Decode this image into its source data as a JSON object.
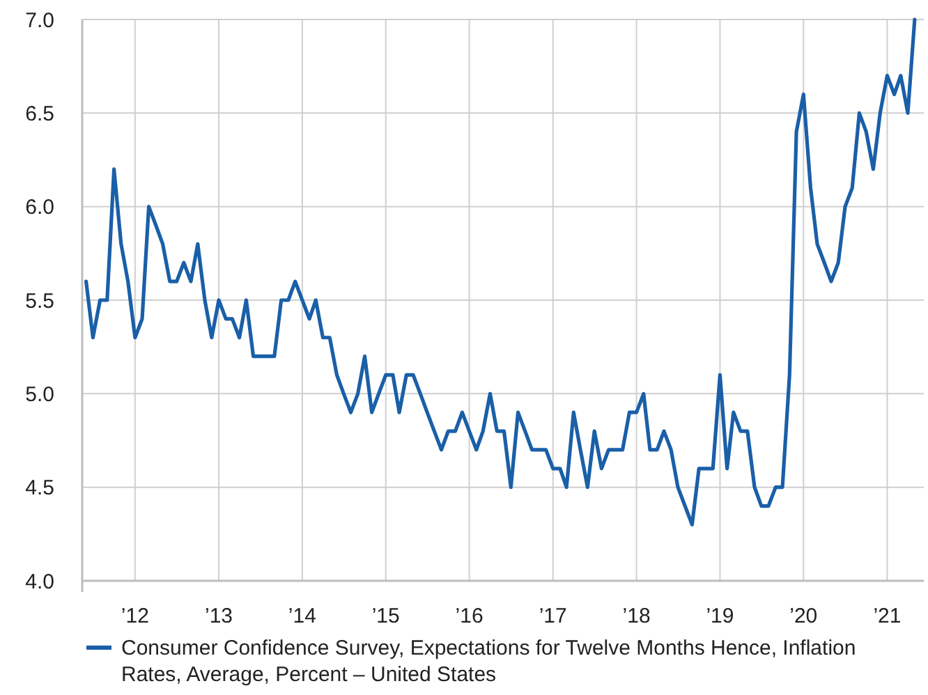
{
  "chart_data": {
    "type": "line",
    "legend": "bottom",
    "grid": true,
    "xlim": [
      "2011-05-15",
      "2021-06-10"
    ],
    "xticks": [
      {
        "value": "2012",
        "label": "’12"
      },
      {
        "value": "2013",
        "label": "’13"
      },
      {
        "value": "2014",
        "label": "’14"
      },
      {
        "value": "2015",
        "label": "’15"
      },
      {
        "value": "2016",
        "label": "’16"
      },
      {
        "value": "2017",
        "label": "’17"
      },
      {
        "value": "2018",
        "label": "’18"
      },
      {
        "value": "2019",
        "label": "’19"
      },
      {
        "value": "2020",
        "label": "’20"
      },
      {
        "value": "2021",
        "label": "’21"
      }
    ],
    "ylim": [
      4,
      7
    ],
    "yticks": [
      {
        "value": 4,
        "label": "4.0"
      },
      {
        "value": 4.5,
        "label": "4.5"
      },
      {
        "value": 5,
        "label": "5.0"
      },
      {
        "value": 5.5,
        "label": "5.5"
      },
      {
        "value": 6,
        "label": "6.0"
      },
      {
        "value": 6.5,
        "label": "6.5"
      },
      {
        "value": 7,
        "label": "7.0"
      }
    ],
    "x": [
      "2011-06",
      "2011-07",
      "2011-08",
      "2011-09",
      "2011-10",
      "2011-11",
      "2011-12",
      "2012-01",
      "2012-02",
      "2012-03",
      "2012-04",
      "2012-05",
      "2012-06",
      "2012-07",
      "2012-08",
      "2012-09",
      "2012-10",
      "2012-11",
      "2012-12",
      "2013-01",
      "2013-02",
      "2013-03",
      "2013-04",
      "2013-05",
      "2013-06",
      "2013-07",
      "2013-08",
      "2013-09",
      "2013-10",
      "2013-11",
      "2013-12",
      "2014-01",
      "2014-02",
      "2014-03",
      "2014-04",
      "2014-05",
      "2014-06",
      "2014-07",
      "2014-08",
      "2014-09",
      "2014-10",
      "2014-11",
      "2014-12",
      "2015-01",
      "2015-02",
      "2015-03",
      "2015-04",
      "2015-05",
      "2015-06",
      "2015-07",
      "2015-08",
      "2015-09",
      "2015-10",
      "2015-11",
      "2015-12",
      "2016-01",
      "2016-02",
      "2016-03",
      "2016-04",
      "2016-05",
      "2016-06",
      "2016-07",
      "2016-08",
      "2016-09",
      "2016-10",
      "2016-11",
      "2016-12",
      "2017-01",
      "2017-02",
      "2017-03",
      "2017-04",
      "2017-05",
      "2017-06",
      "2017-07",
      "2017-08",
      "2017-09",
      "2017-10",
      "2017-11",
      "2017-12",
      "2018-01",
      "2018-02",
      "2018-03",
      "2018-04",
      "2018-05",
      "2018-06",
      "2018-07",
      "2018-08",
      "2018-09",
      "2018-10",
      "2018-11",
      "2018-12",
      "2019-01",
      "2019-02",
      "2019-03",
      "2019-04",
      "2019-05",
      "2019-06",
      "2019-07",
      "2019-08",
      "2019-09",
      "2019-10",
      "2019-11",
      "2019-12",
      "2020-01",
      "2020-02",
      "2020-03",
      "2020-04",
      "2020-05",
      "2020-06",
      "2020-07",
      "2020-08",
      "2020-09",
      "2020-10",
      "2020-11",
      "2020-12",
      "2021-01",
      "2021-02",
      "2021-03",
      "2021-04",
      "2021-05"
    ],
    "series": [
      {
        "name": "Consumer Confidence Survey, Expectations for Twelve Months Hence, Inflation Rates, Average, Percent – United States",
        "color": "#1a5fa8",
        "values": [
          5.6,
          5.3,
          5.5,
          5.5,
          6.2,
          5.8,
          5.6,
          5.3,
          5.4,
          6.0,
          5.9,
          5.8,
          5.6,
          5.6,
          5.7,
          5.6,
          5.8,
          5.5,
          5.3,
          5.5,
          5.4,
          5.4,
          5.3,
          5.5,
          5.2,
          5.2,
          5.2,
          5.2,
          5.5,
          5.5,
          5.6,
          5.5,
          5.4,
          5.5,
          5.3,
          5.3,
          5.1,
          5.0,
          4.9,
          5.0,
          5.2,
          4.9,
          5.0,
          5.1,
          5.1,
          4.9,
          5.1,
          5.1,
          5.0,
          4.9,
          4.8,
          4.7,
          4.8,
          4.8,
          4.9,
          4.8,
          4.7,
          4.8,
          5.0,
          4.8,
          4.8,
          4.5,
          4.9,
          4.8,
          4.7,
          4.7,
          4.7,
          4.6,
          4.6,
          4.5,
          4.9,
          4.7,
          4.5,
          4.8,
          4.6,
          4.7,
          4.7,
          4.7,
          4.9,
          4.9,
          5.0,
          4.7,
          4.7,
          4.8,
          4.7,
          4.5,
          4.4,
          4.3,
          4.6,
          4.6,
          4.6,
          5.1,
          4.6,
          4.9,
          4.8,
          4.8,
          4.5,
          4.4,
          4.4,
          4.5,
          4.5,
          5.1,
          6.4,
          6.6,
          6.1,
          5.8,
          5.7,
          5.6,
          5.7,
          6.0,
          6.1,
          6.5,
          6.4,
          6.2,
          6.5,
          6.7,
          6.6,
          6.7,
          6.5,
          7.0
        ]
      }
    ]
  }
}
